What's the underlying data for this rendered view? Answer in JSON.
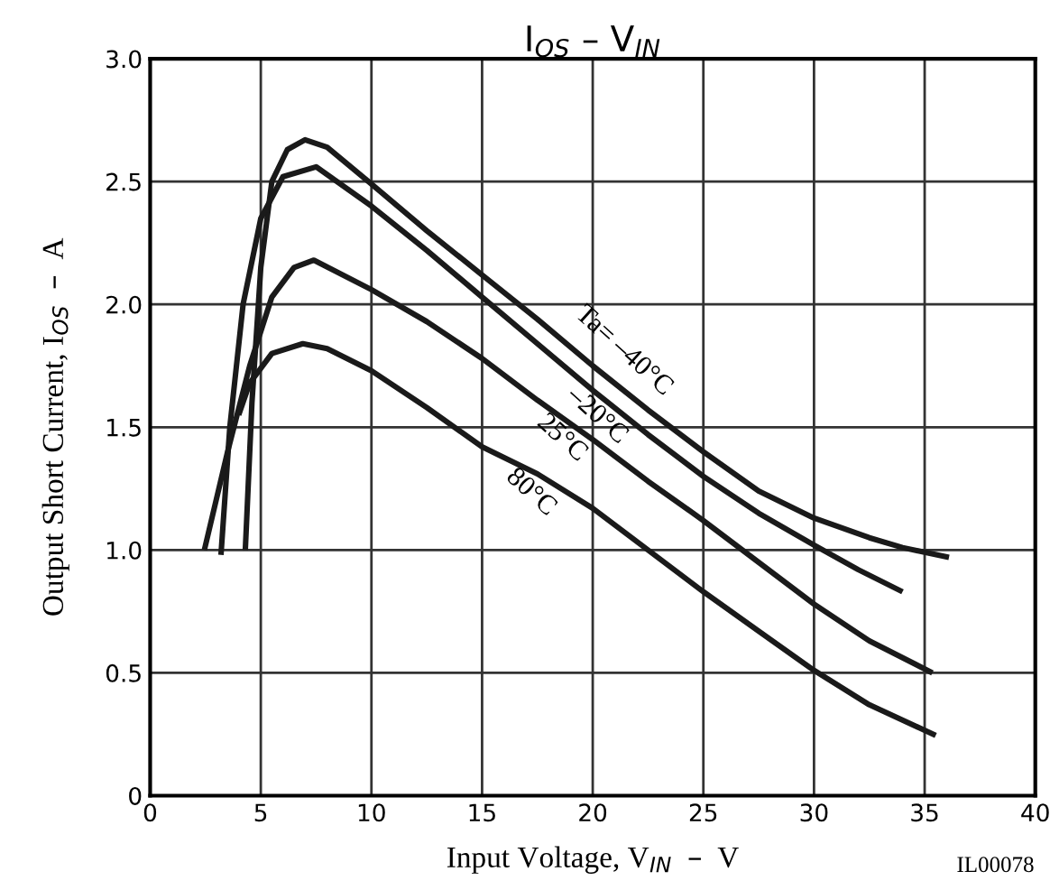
{
  "chart_data": {
    "type": "line",
    "title": "I$_{OS}$ – V$_{IN}$",
    "xlabel": "Input Voltage, V$_{IN}$  –  V",
    "ylabel": "Output Short Current, I$_{OS}$  –  A",
    "xlim": [
      0,
      40
    ],
    "ylim": [
      0,
      3
    ],
    "xticks": [
      0,
      5,
      10,
      15,
      20,
      25,
      30,
      35,
      40
    ],
    "yticks": [
      0,
      0.5,
      {
        "value": 1,
        "label": "1.0"
      },
      1.5,
      {
        "value": 2,
        "label": "2.0"
      },
      2.5,
      {
        "value": 3,
        "label": "3.0"
      }
    ],
    "grid": true,
    "line_style": "solid",
    "marker": "none",
    "series": [
      {
        "name": "Ta= –40°C",
        "color": "#1a1a1a",
        "x": [
          4.3,
          4.6,
          5.0,
          5.5,
          6.2,
          7.0,
          8,
          10,
          12.5,
          15,
          17.5,
          20,
          22.5,
          25,
          27.5,
          30,
          32.5,
          34,
          36.1
        ],
        "values": [
          1.0,
          1.6,
          2.15,
          2.5,
          2.63,
          2.67,
          2.64,
          2.49,
          2.3,
          2.12,
          1.94,
          1.75,
          1.57,
          1.4,
          1.24,
          1.13,
          1.05,
          1.01,
          0.97
        ]
      },
      {
        "name": "–20°C",
        "color": "#1a1a1a",
        "x": [
          3.2,
          3.6,
          4.2,
          5,
          6,
          7.5,
          10,
          12.5,
          15,
          17.5,
          20,
          22.5,
          25,
          27.5,
          30,
          32,
          34
        ],
        "values": [
          0.98,
          1.5,
          2.0,
          2.35,
          2.52,
          2.56,
          2.4,
          2.22,
          2.03,
          1.84,
          1.65,
          1.47,
          1.3,
          1.15,
          1.02,
          0.92,
          0.83
        ]
      },
      {
        "name": "25°C",
        "color": "#1a1a1a",
        "x": [
          2.45,
          3.5,
          4.5,
          5.5,
          6.5,
          7.4,
          10,
          12.5,
          15,
          17.5,
          20,
          22.5,
          25,
          27.5,
          30,
          32.5,
          35.35
        ],
        "values": [
          1.0,
          1.4,
          1.75,
          2.03,
          2.15,
          2.18,
          2.06,
          1.93,
          1.78,
          1.61,
          1.45,
          1.28,
          1.12,
          0.95,
          0.78,
          0.63,
          0.5
        ]
      },
      {
        "name": "80°C",
        "color": "#1a1a1a",
        "x": [
          4.0,
          4.5,
          5.5,
          6.9,
          8,
          10,
          12.5,
          15,
          17.5,
          20,
          22.5,
          25,
          27.5,
          30,
          32.5,
          35.5
        ],
        "values": [
          1.55,
          1.68,
          1.8,
          1.84,
          1.82,
          1.73,
          1.58,
          1.42,
          1.31,
          1.17,
          1.0,
          0.83,
          0.67,
          0.51,
          0.37,
          0.245
        ]
      }
    ],
    "annotations": [
      "IL00078"
    ]
  }
}
